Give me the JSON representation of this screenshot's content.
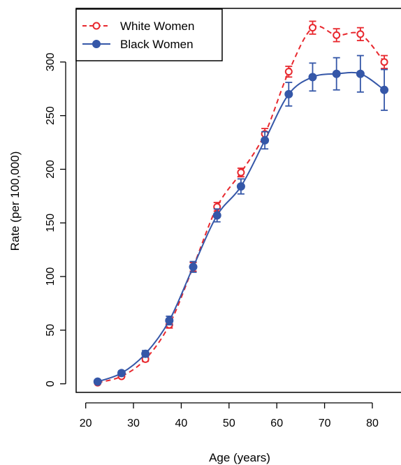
{
  "chart_data": {
    "type": "line",
    "title": "",
    "xlabel": "Age (years)",
    "ylabel": "Rate (per 100,000)",
    "xlim": [
      18,
      86
    ],
    "ylim": [
      -8,
      350
    ],
    "x_ticks": [
      20,
      30,
      40,
      50,
      60,
      70,
      80
    ],
    "y_ticks": [
      0,
      50,
      100,
      150,
      200,
      250,
      300
    ],
    "legend_position": "top-left",
    "series": [
      {
        "name": "White Women",
        "color": "#e8282e",
        "line_style": "dashed",
        "marker": "open-circle",
        "x": [
          22.5,
          27.5,
          32.5,
          37.5,
          42.5,
          47.5,
          52.5,
          57.5,
          62.5,
          67.5,
          72.5,
          77.5,
          82.5
        ],
        "y": [
          1,
          7,
          23,
          55,
          109,
          165,
          197,
          233,
          291,
          332,
          325,
          326,
          300
        ],
        "err_low": [
          0,
          1,
          2,
          3,
          4,
          4,
          4,
          5,
          5,
          6,
          6,
          6,
          6
        ],
        "err_high": [
          0,
          1,
          2,
          3,
          4,
          4,
          4,
          5,
          5,
          6,
          6,
          6,
          6
        ]
      },
      {
        "name": "Black Women",
        "color": "#3557a8",
        "line_style": "solid",
        "marker": "filled-circle",
        "x": [
          22.5,
          27.5,
          32.5,
          37.5,
          42.5,
          47.5,
          52.5,
          57.5,
          62.5,
          67.5,
          72.5,
          77.5,
          82.5
        ],
        "y": [
          2,
          10,
          28,
          59,
          109,
          157,
          184,
          227,
          270,
          286,
          289,
          289,
          274
        ],
        "err_low": [
          1,
          2,
          3,
          4,
          5,
          6,
          7,
          8,
          11,
          13,
          15,
          17,
          19
        ],
        "err_high": [
          1,
          2,
          3,
          4,
          5,
          6,
          7,
          8,
          11,
          13,
          15,
          17,
          19
        ]
      }
    ]
  }
}
